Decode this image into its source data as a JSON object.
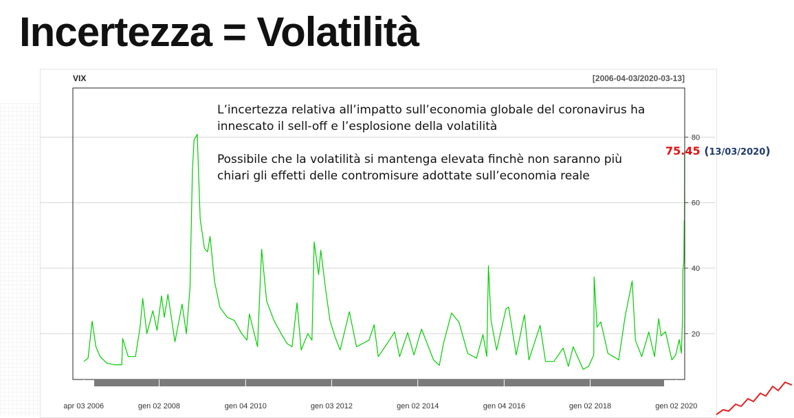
{
  "slide": {
    "title": "Incertezza = Volatilità"
  },
  "chart_data": {
    "type": "line",
    "title": "VIX",
    "date_range": "[2006-04-03/2020-03-13]",
    "x_tick_labels": [
      "apr 03 2006",
      "gen 02 2008",
      "gen 04 2010",
      "gen 03 2012",
      "gen 02 2014",
      "gen 04 2016",
      "gen 02 2018",
      "gen 02 2020"
    ],
    "x_tick_dates": [
      "2006-04-03",
      "2008-01-02",
      "2010-01-04",
      "2012-01-03",
      "2014-01-02",
      "2016-01-04",
      "2018-01-02",
      "2020-01-02"
    ],
    "y_ticks": [
      20,
      40,
      60,
      80
    ],
    "ylim": [
      6,
      95
    ],
    "xlim": [
      "2006-01-01",
      "2020-03-13"
    ],
    "grid": true,
    "y_axis_side": "right",
    "series": [
      {
        "color": "#00cc00",
        "points": [
          [
            "2006-04-03",
            11.5
          ],
          [
            "2006-05-10",
            12.5
          ],
          [
            "2006-06-13",
            23.8
          ],
          [
            "2006-07-15",
            16
          ],
          [
            "2006-08-20",
            13
          ],
          [
            "2006-10-15",
            11
          ],
          [
            "2006-12-20",
            10.5
          ],
          [
            "2007-02-20",
            10.5
          ],
          [
            "2007-02-27",
            18.5
          ],
          [
            "2007-04-15",
            13
          ],
          [
            "2007-06-15",
            13
          ],
          [
            "2007-07-25",
            22
          ],
          [
            "2007-08-16",
            30.8
          ],
          [
            "2007-09-20",
            20
          ],
          [
            "2007-11-10",
            27
          ],
          [
            "2007-12-15",
            21
          ],
          [
            "2008-01-22",
            31.5
          ],
          [
            "2008-02-15",
            25
          ],
          [
            "2008-03-17",
            32
          ],
          [
            "2008-05-15",
            17.5
          ],
          [
            "2008-07-15",
            29
          ],
          [
            "2008-08-20",
            20
          ],
          [
            "2008-09-20",
            34
          ],
          [
            "2008-10-10",
            69.9
          ],
          [
            "2008-10-24",
            79.1
          ],
          [
            "2008-11-20",
            80.9
          ],
          [
            "2008-12-15",
            55
          ],
          [
            "2009-01-20",
            46
          ],
          [
            "2009-02-15",
            45
          ],
          [
            "2009-03-09",
            49.7
          ],
          [
            "2009-04-15",
            36
          ],
          [
            "2009-06-01",
            28
          ],
          [
            "2009-08-01",
            25
          ],
          [
            "2009-10-01",
            24
          ],
          [
            "2009-12-01",
            20
          ],
          [
            "2010-01-15",
            18
          ],
          [
            "2010-02-05",
            26
          ],
          [
            "2010-04-15",
            16
          ],
          [
            "2010-05-20",
            45.8
          ],
          [
            "2010-07-01",
            30
          ],
          [
            "2010-09-01",
            24
          ],
          [
            "2010-11-01",
            20
          ],
          [
            "2010-12-20",
            17
          ],
          [
            "2011-02-01",
            16
          ],
          [
            "2011-03-16",
            29.4
          ],
          [
            "2011-04-20",
            15
          ],
          [
            "2011-06-15",
            20
          ],
          [
            "2011-07-20",
            18
          ],
          [
            "2011-08-08",
            48
          ],
          [
            "2011-09-15",
            38
          ],
          [
            "2011-10-03",
            45.5
          ],
          [
            "2011-11-15",
            33
          ],
          [
            "2011-12-20",
            24
          ],
          [
            "2012-02-01",
            19
          ],
          [
            "2012-03-15",
            15
          ],
          [
            "2012-06-01",
            26.7
          ],
          [
            "2012-08-01",
            16
          ],
          [
            "2012-11-15",
            18
          ],
          [
            "2012-12-28",
            22.7
          ],
          [
            "2013-02-01",
            13
          ],
          [
            "2013-04-18",
            17
          ],
          [
            "2013-06-20",
            20.5
          ],
          [
            "2013-08-01",
            13
          ],
          [
            "2013-10-08",
            20.3
          ],
          [
            "2013-12-01",
            13.5
          ],
          [
            "2014-02-03",
            21.4
          ],
          [
            "2014-05-15",
            12
          ],
          [
            "2014-07-03",
            10.3
          ],
          [
            "2014-08-08",
            17
          ],
          [
            "2014-10-15",
            26.3
          ],
          [
            "2014-12-16",
            23.6
          ],
          [
            "2015-03-01",
            14
          ],
          [
            "2015-05-15",
            12.5
          ],
          [
            "2015-07-08",
            19.7
          ],
          [
            "2015-08-10",
            13
          ],
          [
            "2015-08-24",
            40.7
          ],
          [
            "2015-09-15",
            24
          ],
          [
            "2015-11-01",
            15
          ],
          [
            "2016-01-20",
            27.6
          ],
          [
            "2016-02-11",
            28.1
          ],
          [
            "2016-04-15",
            13.5
          ],
          [
            "2016-06-24",
            25.8
          ],
          [
            "2016-08-01",
            12
          ],
          [
            "2016-11-04",
            22.5
          ],
          [
            "2016-12-20",
            11.5
          ],
          [
            "2017-03-01",
            11.5
          ],
          [
            "2017-05-18",
            15.6
          ],
          [
            "2017-07-01",
            10
          ],
          [
            "2017-08-11",
            16
          ],
          [
            "2017-11-03",
            9.1
          ],
          [
            "2017-12-20",
            10
          ],
          [
            "2018-02-01",
            13.5
          ],
          [
            "2018-02-05",
            37.3
          ],
          [
            "2018-03-01",
            22
          ],
          [
            "2018-04-02",
            23.6
          ],
          [
            "2018-06-01",
            14
          ],
          [
            "2018-09-01",
            12
          ],
          [
            "2018-10-25",
            25.2
          ],
          [
            "2018-12-24",
            36.1
          ],
          [
            "2019-01-20",
            18
          ],
          [
            "2019-03-15",
            13
          ],
          [
            "2019-05-14",
            20.5
          ],
          [
            "2019-07-01",
            13
          ],
          [
            "2019-08-06",
            24.6
          ],
          [
            "2019-08-26",
            19.3
          ],
          [
            "2019-10-02",
            20.6
          ],
          [
            "2019-11-25",
            12
          ],
          [
            "2019-12-27",
            13.4
          ],
          [
            "2020-01-27",
            18.2
          ],
          [
            "2020-02-14",
            14
          ],
          [
            "2020-02-24",
            25
          ],
          [
            "2020-02-27",
            39.2
          ],
          [
            "2020-03-06",
            41.9
          ],
          [
            "2020-03-09",
            54.5
          ],
          [
            "2020-03-10",
            47.3
          ],
          [
            "2020-03-11",
            53.9
          ],
          [
            "2020-03-12",
            75.5
          ],
          [
            "2020-03-13",
            75.45
          ]
        ]
      }
    ],
    "annotation": [
      "L’incertezza relativa all’impatto sull’economia globale del coronavirus ha innescato il sell-off e l’esplosione della volatilità",
      "Possibile che la volatilità si mantenga elevata finchè non saranno più chiari gli effetti delle contromisure adottate sull’economia reale"
    ],
    "last_value": {
      "value": "75.45",
      "date": "13/03/2020",
      "color": "#e01010",
      "date_color": "#1f3a6e"
    }
  }
}
